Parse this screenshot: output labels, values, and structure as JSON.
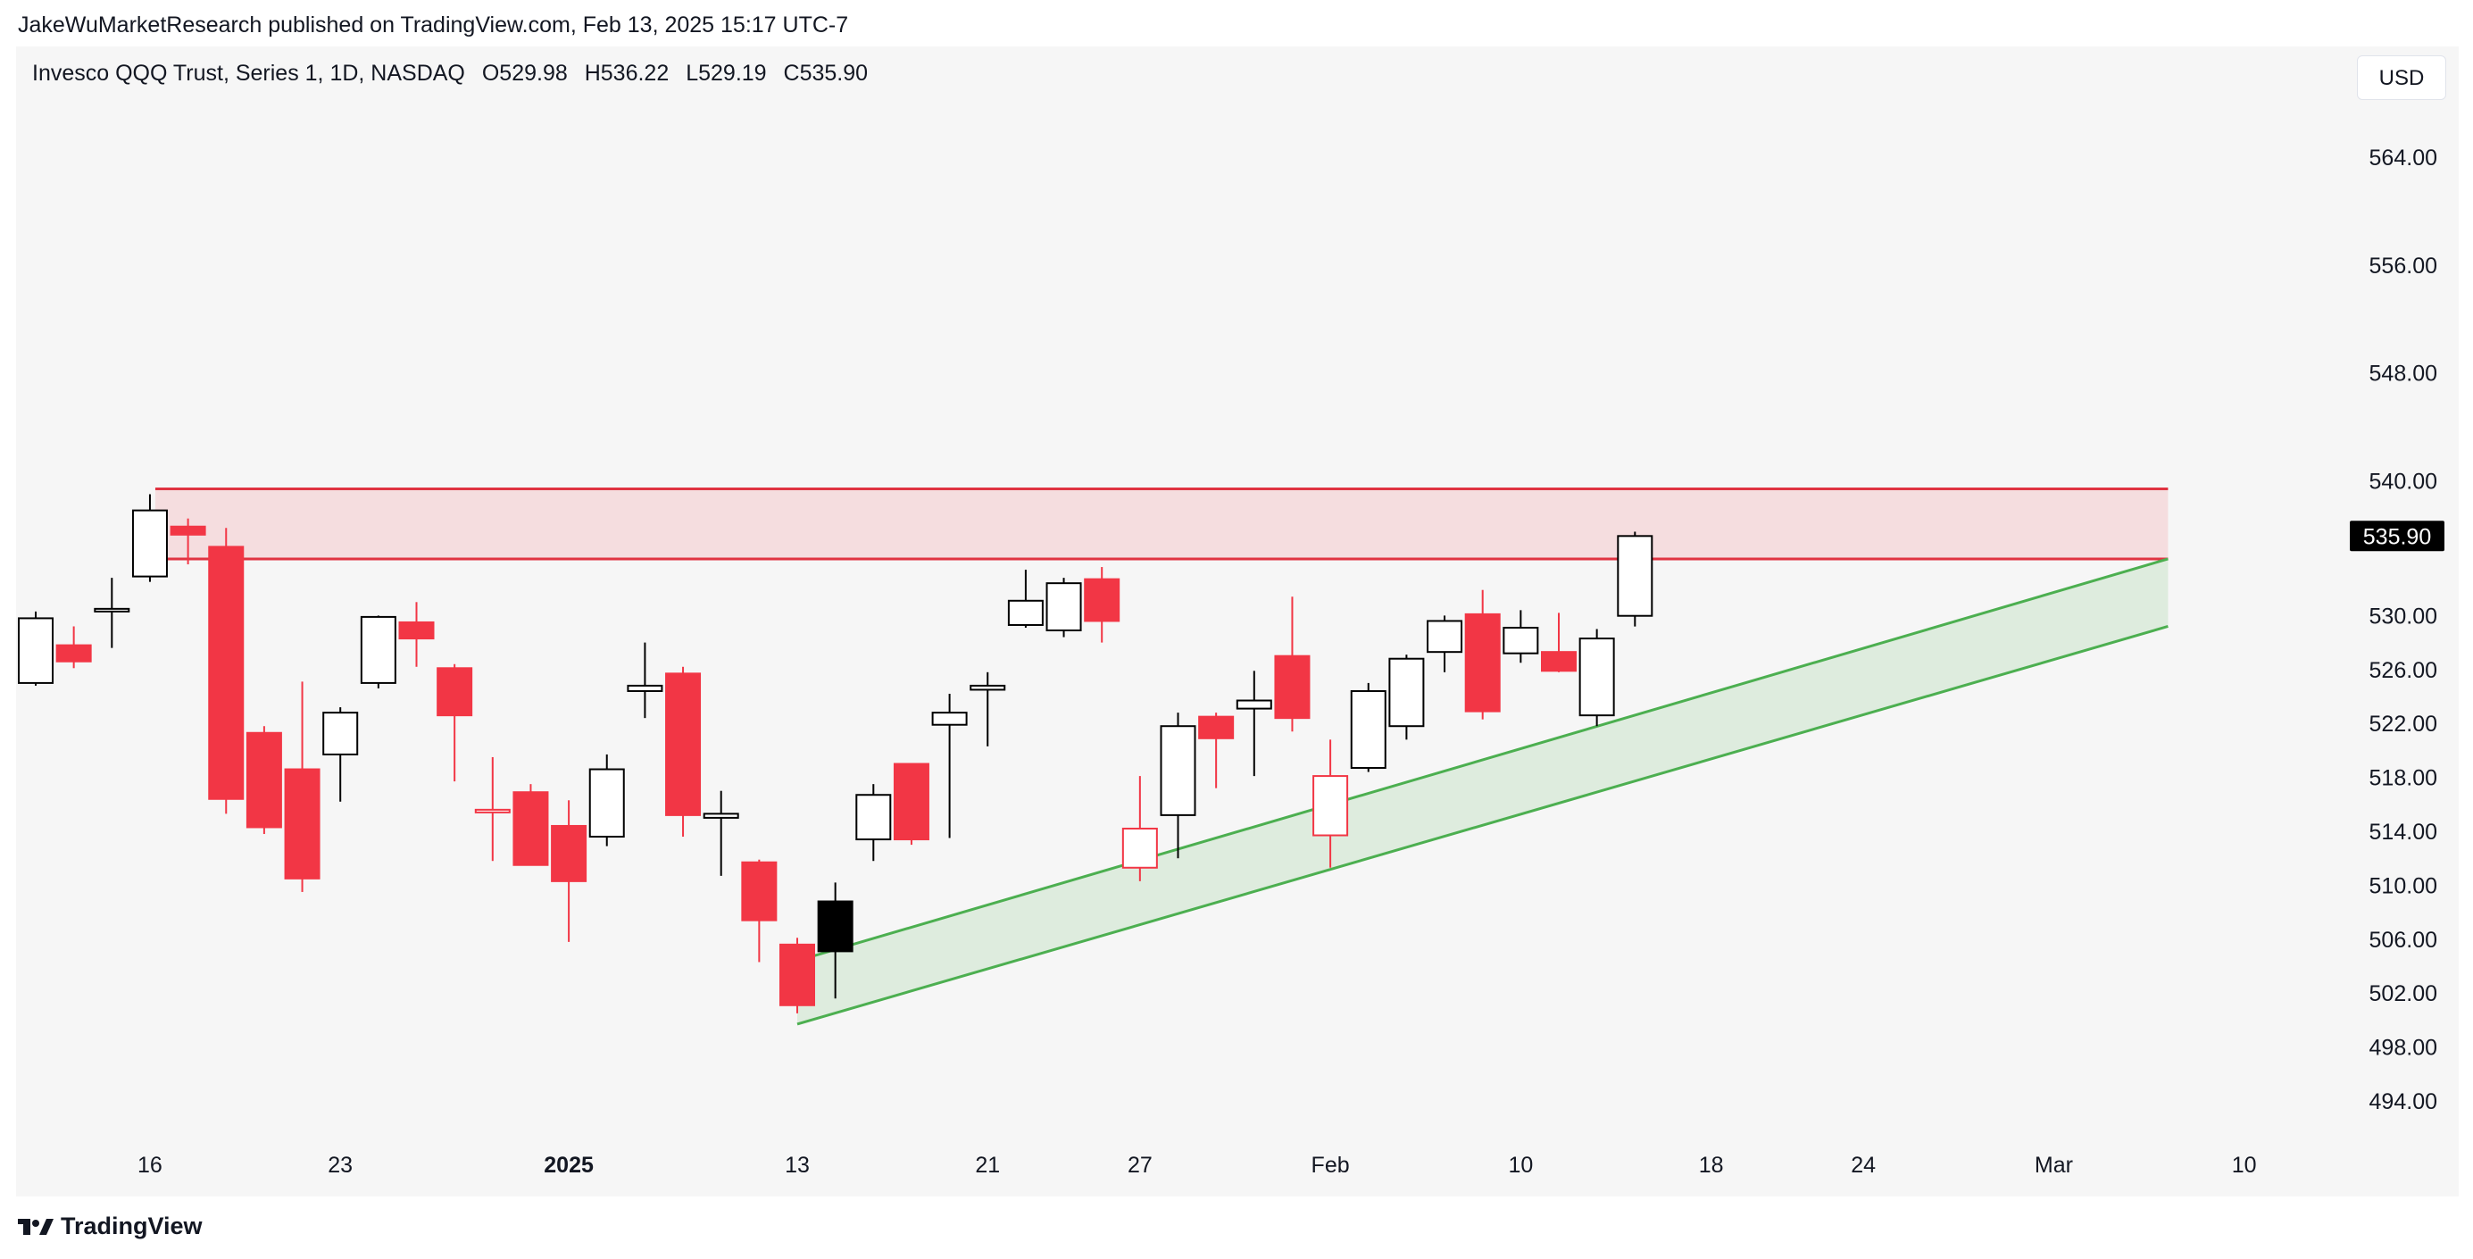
{
  "header": {
    "published": "JakeWuMarketResearch published on TradingView.com, Feb 13, 2025 15:17 UTC-7"
  },
  "symbol": {
    "name": "Invesco QQQ Trust, Series 1, 1D, NASDAQ",
    "open": "O529.98",
    "high": "H536.22",
    "low": "L529.19",
    "close": "C535.90"
  },
  "currency": "USD",
  "brand": "TradingView",
  "colors": {
    "up": "#000000",
    "down": "#f23645",
    "zone_line": "#e03341",
    "zone_fill": "rgba(242,54,69,0.13)",
    "channel_line": "#4caf50",
    "channel_fill": "rgba(76,175,80,0.14)",
    "panel_bg": "#f6f6f6"
  },
  "chart_data": {
    "type": "candlestick",
    "title": "Invesco QQQ Trust, Series 1, 1D, NASDAQ",
    "ylim": [
      490,
      568
    ],
    "y_ticks": [
      "564.00",
      "556.00",
      "548.00",
      "540.00",
      "530.00",
      "526.00",
      "522.00",
      "518.00",
      "514.00",
      "510.00",
      "506.00",
      "502.00",
      "498.00",
      "494.00"
    ],
    "x_ticks": [
      {
        "label": "16",
        "date": "2024-12-16",
        "bold": false
      },
      {
        "label": "23",
        "date": "2024-12-23",
        "bold": false
      },
      {
        "label": "2025",
        "date": "2025-01-01",
        "bold": true
      },
      {
        "label": "13",
        "date": "2025-01-13",
        "bold": false
      },
      {
        "label": "21",
        "date": "2025-01-21",
        "bold": false
      },
      {
        "label": "27",
        "date": "2025-01-27",
        "bold": false
      },
      {
        "label": "Feb",
        "date": "2025-02-03",
        "bold": false
      },
      {
        "label": "10",
        "date": "2025-02-10",
        "bold": false
      },
      {
        "label": "18",
        "date": "2025-02-18",
        "bold": false
      },
      {
        "label": "24",
        "date": "2025-02-24",
        "bold": false
      },
      {
        "label": "Mar",
        "date": "2025-03-03",
        "bold": false
      },
      {
        "label": "10",
        "date": "2025-03-10",
        "bold": false
      }
    ],
    "last_price_label": "535.90",
    "last_price": 535.9,
    "candles": [
      {
        "date": "2024-12-11",
        "o": 525.0,
        "h": 530.3,
        "l": 524.8,
        "c": 529.8
      },
      {
        "date": "2024-12-12",
        "o": 527.8,
        "h": 529.2,
        "l": 526.1,
        "c": 526.6
      },
      {
        "date": "2024-12-13",
        "o": 530.3,
        "h": 532.8,
        "l": 527.6,
        "c": 530.5
      },
      {
        "date": "2024-12-16",
        "o": 532.9,
        "h": 539.0,
        "l": 532.5,
        "c": 537.8
      },
      {
        "date": "2024-12-17",
        "o": 536.6,
        "h": 537.2,
        "l": 533.8,
        "c": 536.0
      },
      {
        "date": "2024-12-18",
        "o": 535.1,
        "h": 536.5,
        "l": 515.3,
        "c": 516.4
      },
      {
        "date": "2024-12-19",
        "o": 521.3,
        "h": 521.8,
        "l": 513.8,
        "c": 514.3
      },
      {
        "date": "2024-12-20",
        "o": 518.6,
        "h": 525.1,
        "l": 509.5,
        "c": 510.5
      },
      {
        "date": "2024-12-23",
        "o": 519.7,
        "h": 523.2,
        "l": 516.2,
        "c": 522.8
      },
      {
        "date": "2024-12-24",
        "o": 525.0,
        "h": 530.0,
        "l": 524.6,
        "c": 529.9
      },
      {
        "date": "2024-12-26",
        "o": 529.5,
        "h": 531.0,
        "l": 526.2,
        "c": 528.3
      },
      {
        "date": "2024-12-27",
        "o": 526.1,
        "h": 526.4,
        "l": 517.7,
        "c": 522.6
      },
      {
        "date": "2024-12-30",
        "o": 515.5,
        "h": 519.5,
        "l": 511.8,
        "c": 515.5
      },
      {
        "date": "2024-12-31",
        "o": 516.9,
        "h": 517.5,
        "l": 511.5,
        "c": 511.5
      },
      {
        "date": "2025-01-02",
        "o": 514.4,
        "h": 516.3,
        "l": 505.8,
        "c": 510.3
      },
      {
        "date": "2025-01-03",
        "o": 513.6,
        "h": 519.7,
        "l": 512.9,
        "c": 518.6
      },
      {
        "date": "2025-01-06",
        "o": 524.4,
        "h": 528.0,
        "l": 522.4,
        "c": 524.8
      },
      {
        "date": "2025-01-07",
        "o": 525.7,
        "h": 526.2,
        "l": 513.6,
        "c": 515.2
      },
      {
        "date": "2025-01-08",
        "o": 515.0,
        "h": 517.0,
        "l": 510.7,
        "c": 515.3
      },
      {
        "date": "2025-01-10",
        "o": 511.7,
        "h": 511.9,
        "l": 504.3,
        "c": 507.4
      },
      {
        "date": "2025-01-13",
        "o": 505.6,
        "h": 506.1,
        "l": 500.5,
        "c": 501.1
      },
      {
        "date": "2025-01-14",
        "o": 508.8,
        "h": 510.2,
        "l": 501.6,
        "c": 505.1
      },
      {
        "date": "2025-01-15",
        "o": 513.4,
        "h": 517.5,
        "l": 511.8,
        "c": 516.7
      },
      {
        "date": "2025-01-16",
        "o": 519.0,
        "h": 519.0,
        "l": 513.0,
        "c": 513.4
      },
      {
        "date": "2025-01-17",
        "o": 521.9,
        "h": 524.2,
        "l": 513.5,
        "c": 522.8
      },
      {
        "date": "2025-01-21",
        "o": 524.5,
        "h": 525.8,
        "l": 520.3,
        "c": 524.8
      },
      {
        "date": "2025-01-22",
        "o": 529.3,
        "h": 533.4,
        "l": 529.1,
        "c": 531.1
      },
      {
        "date": "2025-01-23",
        "o": 528.9,
        "h": 532.8,
        "l": 528.4,
        "c": 532.4
      },
      {
        "date": "2025-01-24",
        "o": 532.7,
        "h": 533.6,
        "l": 528.0,
        "c": 529.6
      },
      {
        "date": "2025-01-27",
        "o": 511.3,
        "h": 518.1,
        "l": 510.3,
        "c": 514.2
      },
      {
        "date": "2025-01-28",
        "o": 515.2,
        "h": 522.8,
        "l": 512.0,
        "c": 521.8
      },
      {
        "date": "2025-01-29",
        "o": 522.5,
        "h": 522.8,
        "l": 517.2,
        "c": 520.9
      },
      {
        "date": "2025-01-30",
        "o": 523.1,
        "h": 525.9,
        "l": 518.1,
        "c": 523.7
      },
      {
        "date": "2025-01-31",
        "o": 527.0,
        "h": 531.4,
        "l": 521.4,
        "c": 522.4
      },
      {
        "date": "2025-02-03",
        "o": 513.7,
        "h": 520.8,
        "l": 511.3,
        "c": 518.1
      },
      {
        "date": "2025-02-04",
        "o": 518.7,
        "h": 525.0,
        "l": 518.4,
        "c": 524.4
      },
      {
        "date": "2025-02-05",
        "o": 521.8,
        "h": 527.1,
        "l": 520.8,
        "c": 526.8
      },
      {
        "date": "2025-02-06",
        "o": 527.3,
        "h": 530.0,
        "l": 525.8,
        "c": 529.6
      },
      {
        "date": "2025-02-07",
        "o": 530.1,
        "h": 531.9,
        "l": 522.3,
        "c": 522.9
      },
      {
        "date": "2025-02-10",
        "o": 527.2,
        "h": 530.4,
        "l": 526.5,
        "c": 529.1
      },
      {
        "date": "2025-02-11",
        "o": 527.3,
        "h": 530.2,
        "l": 525.8,
        "c": 525.9
      },
      {
        "date": "2025-02-12",
        "o": 522.6,
        "h": 529.0,
        "l": 521.8,
        "c": 528.3
      },
      {
        "date": "2025-02-13",
        "o": 529.98,
        "h": 536.22,
        "l": 529.19,
        "c": 535.9
      }
    ],
    "annotations": [
      {
        "type": "resistance-zone",
        "x_start": "2024-12-16",
        "x_end": "2025-03-06",
        "top": 539.4,
        "bottom": 534.2
      },
      {
        "type": "ascending-channel",
        "upper": [
          {
            "date": "2025-01-13",
            "y": 504.4
          },
          {
            "date": "2025-03-06",
            "y": 534.2
          }
        ],
        "lower": [
          {
            "date": "2025-01-13",
            "y": 499.7
          },
          {
            "date": "2025-03-06",
            "y": 529.2
          }
        ]
      }
    ]
  }
}
